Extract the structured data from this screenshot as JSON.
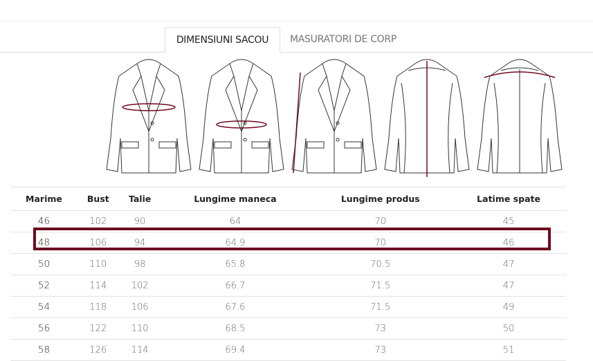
{
  "tabs": [
    {
      "label": "DIMENSIUNI SACOU",
      "active": true
    },
    {
      "label": "MASURATORI DE CORP",
      "active": false
    }
  ],
  "jacket_icons": [
    "jacket-bust-icon",
    "jacket-waist-icon",
    "jacket-sleeve-icon",
    "jacket-length-icon",
    "jacket-back-width-icon"
  ],
  "accent_color": "#6e0a1e",
  "table": {
    "headers": [
      "Marime",
      "Bust",
      "Talie",
      "Lungime maneca",
      "Lungime produs",
      "Latime spate"
    ],
    "rows": [
      [
        "46",
        "102",
        "90",
        "64",
        "70",
        "45"
      ],
      [
        "48",
        "106",
        "94",
        "64.9",
        "70",
        "46"
      ],
      [
        "50",
        "110",
        "98",
        "65.8",
        "70.5",
        "47"
      ],
      [
        "52",
        "114",
        "102",
        "66.7",
        "71.5",
        "47"
      ],
      [
        "54",
        "118",
        "106",
        "67.6",
        "71.5",
        "49"
      ],
      [
        "56",
        "122",
        "110",
        "68.5",
        "73",
        "50"
      ],
      [
        "58",
        "126",
        "114",
        "69.4",
        "73",
        "51"
      ]
    ],
    "highlighted_row": "48"
  }
}
